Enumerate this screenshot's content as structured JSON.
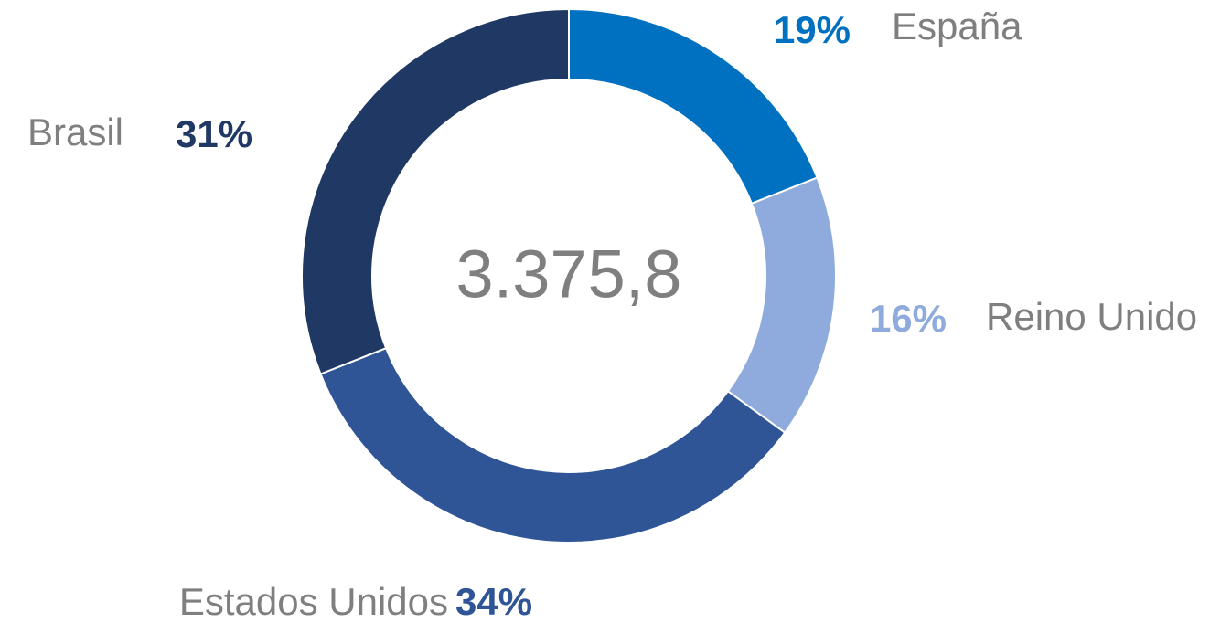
{
  "chart_data": {
    "type": "donut",
    "center_label": "3.375,8",
    "categories": [
      "España",
      "Reino Unido",
      "Estados Unidos",
      "Brasil"
    ],
    "values": [
      19,
      16,
      34,
      31
    ],
    "value_labels": [
      "19%",
      "16%",
      "34%",
      "31%"
    ],
    "colors": [
      "#0070c0",
      "#8faadc",
      "#2f5597",
      "#203864"
    ]
  }
}
